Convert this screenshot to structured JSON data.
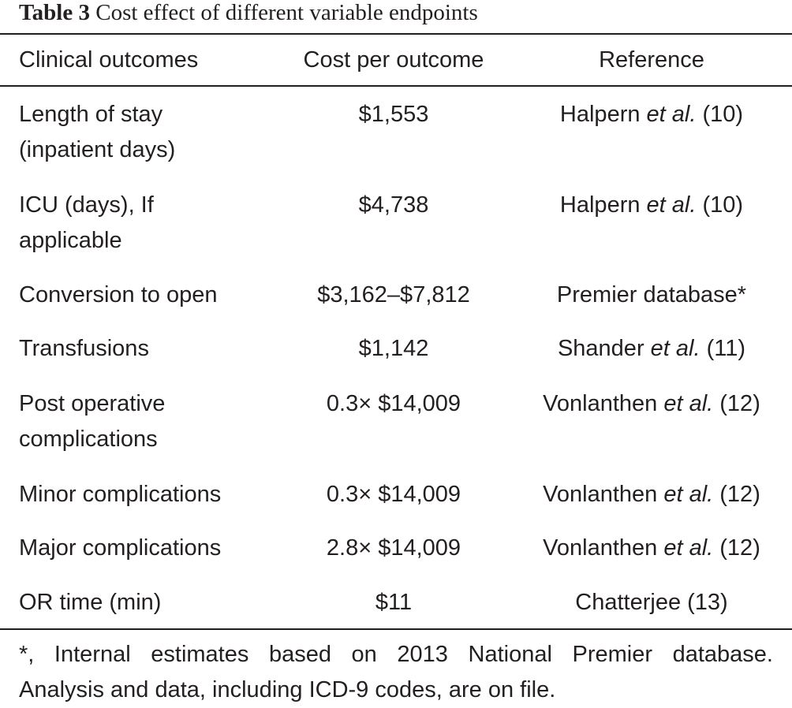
{
  "caption": {
    "label": "Table 3",
    "title": "Cost effect of different variable endpoints"
  },
  "table": {
    "headers": [
      "Clinical outcomes",
      "Cost per outcome",
      "Reference"
    ],
    "rows": [
      {
        "outcome_line1": "Length of stay",
        "outcome_line2": "(inpatient days)",
        "cost": "$1,553",
        "ref_author": "Halpern",
        "ref_etal": " et al.",
        "ref_num": " (10)"
      },
      {
        "outcome_line1": "ICU (days), If",
        "outcome_line2": "applicable",
        "cost": "$4,738",
        "ref_author": "Halpern",
        "ref_etal": " et al.",
        "ref_num": " (10)"
      },
      {
        "outcome_line1": "Conversion to open",
        "outcome_line2": "",
        "cost": "$3,162–$7,812",
        "ref_author": "Premier database*",
        "ref_etal": "",
        "ref_num": ""
      },
      {
        "outcome_line1": "Transfusions",
        "outcome_line2": "",
        "cost": "$1,142",
        "ref_author": "Shander",
        "ref_etal": " et al.",
        "ref_num": " (11)"
      },
      {
        "outcome_line1": "Post operative",
        "outcome_line2": "complications",
        "cost": "0.3× $14,009",
        "ref_author": "Vonlanthen",
        "ref_etal": " et al.",
        "ref_num": " (12)"
      },
      {
        "outcome_line1": "Minor complications",
        "outcome_line2": "",
        "cost": "0.3× $14,009",
        "ref_author": "Vonlanthen",
        "ref_etal": " et al.",
        "ref_num": " (12)"
      },
      {
        "outcome_line1": "Major complications",
        "outcome_line2": "",
        "cost": "2.8× $14,009",
        "ref_author": "Vonlanthen",
        "ref_etal": " et al.",
        "ref_num": " (12)"
      },
      {
        "outcome_line1": "OR time (min)",
        "outcome_line2": "",
        "cost": "$11",
        "ref_author": "Chatterjee (13)",
        "ref_etal": "",
        "ref_num": ""
      }
    ]
  },
  "footnote": {
    "line1": "*, Internal estimates based on 2013 National Premier database.",
    "line2": "Analysis and data, including ICD-9 codes, are on file."
  }
}
